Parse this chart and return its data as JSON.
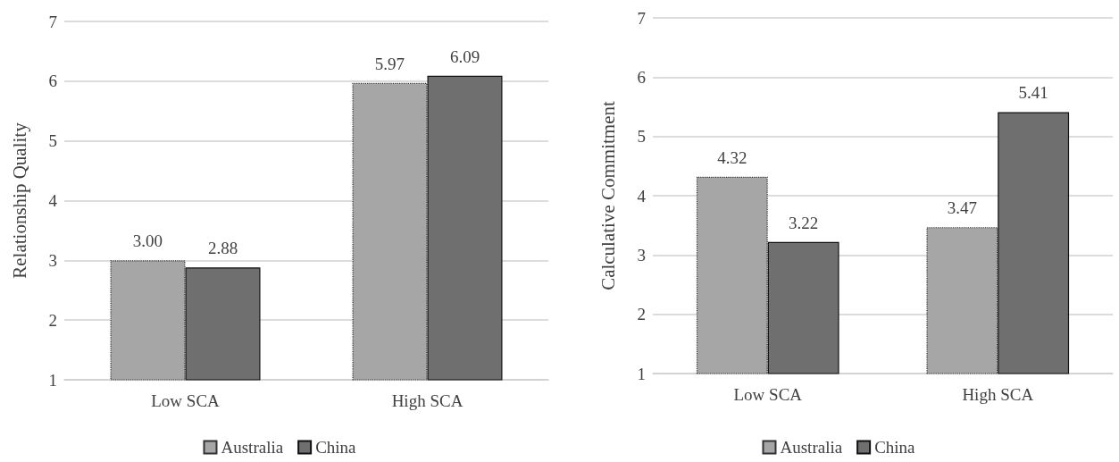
{
  "chart_data": [
    {
      "type": "bar",
      "ylabel": "Relationship Quality",
      "categories": [
        "Low SCA",
        "High SCA"
      ],
      "series": [
        {
          "name": "Australia",
          "color": "#a6a6a6",
          "values": [
            3.0,
            5.97
          ],
          "value_labels": [
            "3.00",
            "5.97"
          ]
        },
        {
          "name": "China",
          "color": "#6f6f6f",
          "values": [
            2.88,
            6.09
          ],
          "value_labels": [
            "2.88",
            "6.09"
          ]
        }
      ],
      "ylim": [
        1,
        7
      ],
      "yticks": [
        1,
        2,
        3,
        4,
        5,
        6,
        7
      ],
      "grid": "y",
      "legend": "bottom"
    },
    {
      "type": "bar",
      "ylabel": "Calculative Commitment",
      "categories": [
        "Low SCA",
        "High SCA"
      ],
      "series": [
        {
          "name": "Australia",
          "color": "#a6a6a6",
          "values": [
            4.32,
            3.47
          ],
          "value_labels": [
            "4.32",
            "3.47"
          ]
        },
        {
          "name": "China",
          "color": "#6f6f6f",
          "values": [
            3.22,
            5.41
          ],
          "value_labels": [
            "3.22",
            "5.41"
          ]
        }
      ],
      "ylim": [
        1,
        7
      ],
      "yticks": [
        1,
        2,
        3,
        4,
        5,
        6,
        7
      ],
      "grid": "y",
      "legend": "bottom"
    }
  ]
}
